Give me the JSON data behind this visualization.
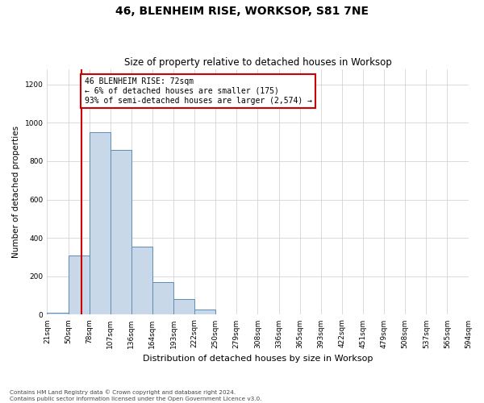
{
  "title": "46, BLENHEIM RISE, WORKSOP, S81 7NE",
  "subtitle": "Size of property relative to detached houses in Worksop",
  "xlabel": "Distribution of detached houses by size in Worksop",
  "ylabel": "Number of detached properties",
  "bin_labels": [
    "21sqm",
    "50sqm",
    "78sqm",
    "107sqm",
    "136sqm",
    "164sqm",
    "193sqm",
    "222sqm",
    "250sqm",
    "279sqm",
    "308sqm",
    "336sqm",
    "365sqm",
    "393sqm",
    "422sqm",
    "451sqm",
    "479sqm",
    "508sqm",
    "537sqm",
    "565sqm",
    "594sqm"
  ],
  "bar_heights": [
    10,
    310,
    950,
    860,
    355,
    170,
    80,
    27,
    0,
    0,
    0,
    0,
    0,
    0,
    0,
    0,
    0,
    0,
    0,
    0
  ],
  "bar_color": "#c8d8e8",
  "bar_edge_color": "#5b8db8",
  "property_line_bin": 1.65,
  "property_line_color": "#cc0000",
  "annotation_text": "46 BLENHEIM RISE: 72sqm\n← 6% of detached houses are smaller (175)\n93% of semi-detached houses are larger (2,574) →",
  "annotation_box_color": "#cc0000",
  "ylim": [
    0,
    1280
  ],
  "yticks": [
    0,
    200,
    400,
    600,
    800,
    1000,
    1200
  ],
  "footer": "Contains HM Land Registry data © Crown copyright and database right 2024.\nContains public sector information licensed under the Open Government Licence v3.0.",
  "background_color": "#ffffff",
  "grid_color": "#cccccc",
  "title_fontsize": 10,
  "subtitle_fontsize": 8.5,
  "xlabel_fontsize": 8,
  "ylabel_fontsize": 7.5,
  "tick_fontsize": 6.5,
  "annotation_fontsize": 7
}
